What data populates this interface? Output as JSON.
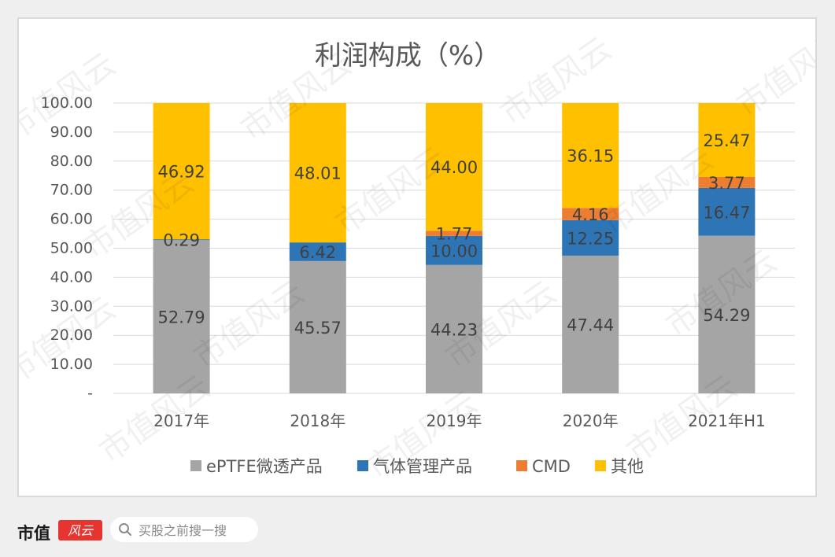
{
  "chart_data": {
    "type": "bar",
    "stacked": true,
    "title": "利润构成（%）",
    "categories": [
      "2017年",
      "2018年",
      "2019年",
      "2020年",
      "2021年H1"
    ],
    "series": [
      {
        "name": "ePTFE微透产品",
        "color": "#A5A5A5",
        "values": [
          52.79,
          45.57,
          44.23,
          47.44,
          54.29
        ]
      },
      {
        "name": "气体管理产品",
        "color": "#2E75B6",
        "values": [
          0.29,
          6.42,
          10.0,
          12.25,
          16.47
        ]
      },
      {
        "name": "CMD",
        "color": "#ED7D31",
        "values": [
          0,
          0,
          1.77,
          4.16,
          3.77
        ]
      },
      {
        "name": "其他",
        "color": "#FFC000",
        "values": [
          46.92,
          48.01,
          44.0,
          36.15,
          25.47
        ]
      }
    ],
    "yticks": [
      "-",
      "10.00",
      "20.00",
      "30.00",
      "40.00",
      "50.00",
      "60.00",
      "70.00",
      "80.00",
      "90.00",
      "100.00"
    ],
    "ylim": [
      0,
      100
    ],
    "grid": true,
    "legend": "bottom"
  },
  "watermark": "市值风云",
  "footer": {
    "brand": "市值",
    "logo_text": "风云",
    "search_placeholder": "买股之前搜一搜"
  }
}
